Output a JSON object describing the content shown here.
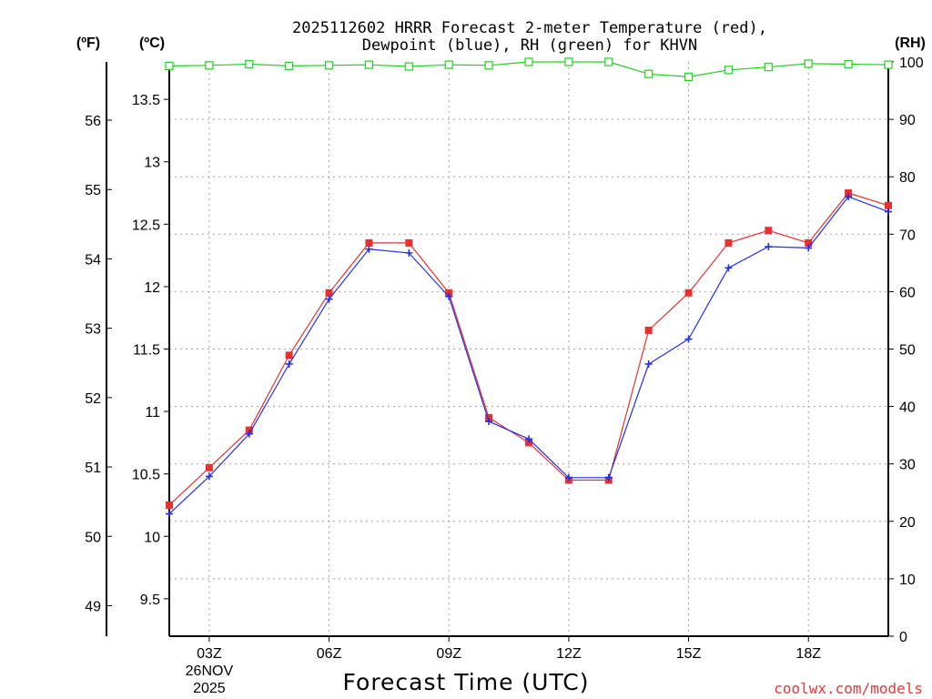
{
  "title_line1": "2025112602 HRRR Forecast 2-meter Temperature (red),",
  "title_line2": "Dewpoint (blue), RH (green) for KHVN",
  "credit": "coolwx.com/models",
  "colors": {
    "temperature": "#e83030",
    "dewpoint": "#2030e8",
    "rh": "#20d020"
  },
  "chart_data": {
    "type": "line",
    "title": "2025112602 HRRR Forecast 2-meter Temperature (red), Dewpoint (blue), RH (green) for KHVN",
    "xlabel": "Forecast Time (UTC)",
    "x_hours": [
      2,
      3,
      4,
      5,
      6,
      7,
      8,
      9,
      10,
      11,
      12,
      13,
      14,
      15,
      16,
      17,
      18,
      19,
      20
    ],
    "x_range": [
      2,
      20
    ],
    "x_ticks": [
      {
        "hour": 3,
        "label": "03Z",
        "date_line1": "26NOV",
        "date_line2": "2025"
      },
      {
        "hour": 6,
        "label": "06Z"
      },
      {
        "hour": 9,
        "label": "09Z"
      },
      {
        "hour": 12,
        "label": "12Z"
      },
      {
        "hour": 15,
        "label": "15Z"
      },
      {
        "hour": 18,
        "label": "18Z"
      }
    ],
    "left_axis_c": {
      "label": "(ºC)",
      "range": [
        9.2,
        13.8
      ],
      "ticks": [
        9.5,
        10,
        10.5,
        11,
        11.5,
        12,
        12.5,
        13,
        13.5
      ],
      "tick_labels": [
        "9.5",
        "10",
        "10.5",
        "11",
        "11.5",
        "12",
        "12.5",
        "13",
        "13.5"
      ]
    },
    "left_axis_f": {
      "label": "(ºF)",
      "ticks": [
        49,
        50,
        51,
        52,
        53,
        54,
        55,
        56
      ],
      "tick_labels": [
        "49",
        "50",
        "51",
        "52",
        "53",
        "54",
        "55",
        "56"
      ]
    },
    "right_axis_rh": {
      "label": "(RH)",
      "range": [
        0,
        100
      ],
      "ticks": [
        0,
        10,
        20,
        30,
        40,
        50,
        60,
        70,
        80,
        90,
        100
      ],
      "tick_labels": [
        "0",
        "10",
        "20",
        "30",
        "40",
        "50",
        "60",
        "70",
        "80",
        "90",
        "100"
      ]
    },
    "series": [
      {
        "name": "Temperature",
        "axis": "left_c",
        "marker": "square",
        "values": [
          10.25,
          10.55,
          10.85,
          11.45,
          11.95,
          12.35,
          12.35,
          11.95,
          10.95,
          10.75,
          10.45,
          10.45,
          11.65,
          11.95,
          12.35,
          12.45,
          12.35,
          12.75,
          12.65
        ]
      },
      {
        "name": "Dewpoint",
        "axis": "left_c",
        "marker": "plus",
        "values": [
          10.18,
          10.48,
          10.82,
          11.38,
          11.9,
          12.3,
          12.27,
          11.92,
          10.92,
          10.78,
          10.47,
          10.47,
          11.38,
          11.58,
          12.15,
          12.32,
          12.31,
          12.72,
          12.6
        ]
      },
      {
        "name": "RH",
        "axis": "right_rh",
        "marker": "open-square",
        "values": [
          99.3,
          99.4,
          99.6,
          99.3,
          99.4,
          99.5,
          99.2,
          99.5,
          99.4,
          100,
          100,
          100,
          97.9,
          97.4,
          98.6,
          99.1,
          99.7,
          99.6,
          99.5
        ]
      }
    ]
  }
}
